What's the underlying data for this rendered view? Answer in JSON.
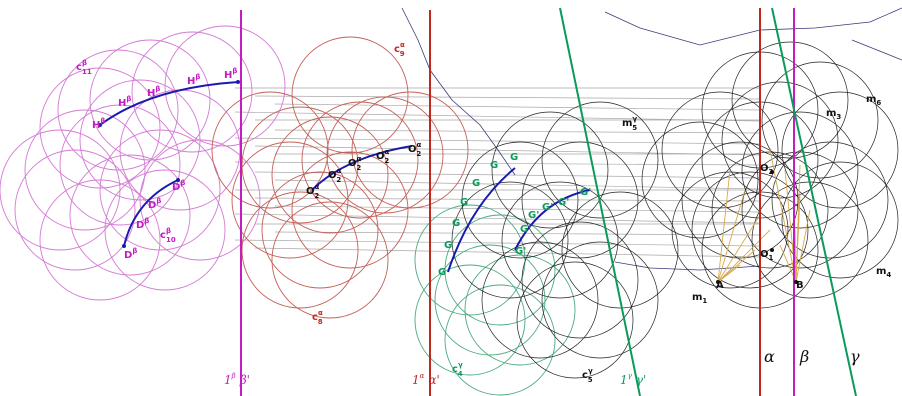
{
  "colors": {
    "magenta": "#c21cc2",
    "magenta_light": "#d47ad4",
    "red": "#c0281e",
    "red_light": "#c46058",
    "green": "#0a9a5a",
    "green_light": "#4aaa80",
    "blue": "#1a1ab0",
    "black": "#111111",
    "gray": "#9a9a9a",
    "orange": "#d8a84a",
    "navy": "#3a3a7a"
  },
  "planes": {
    "beta_trace": {
      "base": "1",
      "sup": "β",
      "prime": "β'"
    },
    "alpha_trace": {
      "base": "1",
      "sup": "α",
      "prime": "α'"
    },
    "gamma_trace": {
      "base": "1",
      "sup": "γ",
      "prime": "γ'"
    },
    "alpha": "α",
    "beta": "β",
    "gamma": "γ"
  },
  "magenta_labels": {
    "c11": {
      "base": "c",
      "sup": "β",
      "sub": "11"
    },
    "c10": {
      "base": "c",
      "sup": "β",
      "sub": "10"
    },
    "H1": {
      "base": "H",
      "sup": "β"
    },
    "H2": {
      "base": "H",
      "sup": "β"
    },
    "H3": {
      "base": "H",
      "sup": "β"
    },
    "H4": {
      "base": "H",
      "sup": "β"
    },
    "H5": {
      "base": "H",
      "sup": "β"
    },
    "D1": {
      "base": "D",
      "sup": "β"
    },
    "D2": {
      "base": "D",
      "sup": "β"
    },
    "D3": {
      "base": "D",
      "sup": "β"
    },
    "D4": {
      "base": "D",
      "sup": "β"
    }
  },
  "red_labels": {
    "c9": {
      "base": "c",
      "sup": "α",
      "sub": "9"
    },
    "c8": {
      "base": "c",
      "sup": "α",
      "sub": "8"
    },
    "O2a": {
      "base": "O",
      "sup": "α",
      "sub": "2"
    },
    "O2b": {
      "base": "O",
      "sup": "α",
      "sub": "2"
    },
    "O2c": {
      "base": "O",
      "sup": "α",
      "sub": "2"
    },
    "O2d": {
      "base": "O",
      "sup": "α",
      "sub": "2"
    },
    "O2e": {
      "base": "O",
      "sup": "α",
      "sub": "2"
    }
  },
  "green_labels": {
    "c4": {
      "base": "c",
      "sup": "γ",
      "sub": "4"
    },
    "G": "G",
    "Gp": "G'"
  },
  "black_labels": {
    "m5": {
      "base": "m",
      "sup": "γ",
      "sub": "5"
    },
    "c5": {
      "base": "c",
      "sup": "γ",
      "sub": "5"
    },
    "m6": {
      "base": "m",
      "sub": "6"
    },
    "m3": {
      "base": "m",
      "sub": "3"
    },
    "m4": {
      "base": "m",
      "sub": "4"
    },
    "m1": {
      "base": "m",
      "sub": "1"
    },
    "O2": {
      "base": "O",
      "sub": "2"
    },
    "O1": {
      "base": "O",
      "sub": "1"
    },
    "A": "A",
    "B": "B"
  }
}
